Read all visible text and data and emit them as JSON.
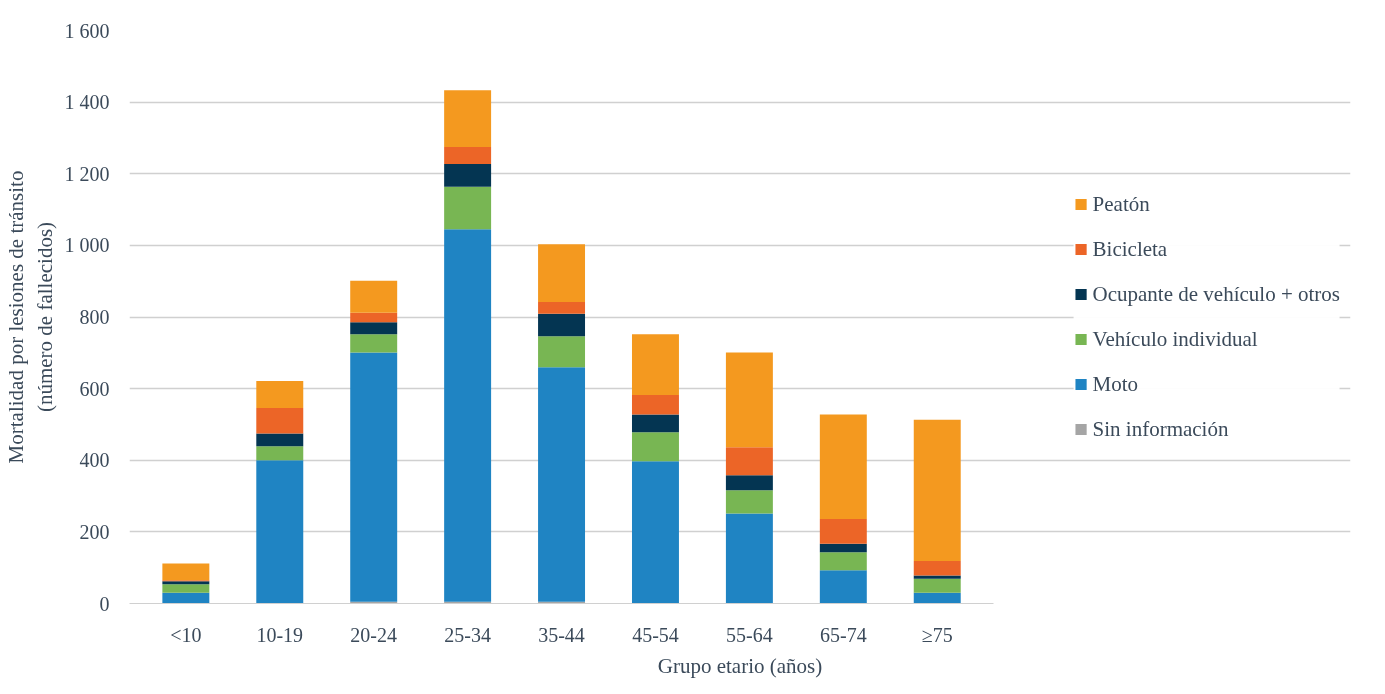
{
  "chart_data": {
    "type": "bar",
    "stacked": true,
    "xlabel": "Grupo etario (años)",
    "ylabel": "Mortalidad por lesiones de tránsito\n(número de fallecidos)",
    "categories": [
      "<10",
      "10-19",
      "20-24",
      "25-34",
      "35-44",
      "45-54",
      "55-64",
      "65-74",
      "≥75"
    ],
    "series": [
      {
        "name": "Sin información",
        "color": "#a5a5a5",
        "values": [
          0,
          0,
          5,
          5,
          5,
          0,
          0,
          0,
          0
        ]
      },
      {
        "name": "Moto",
        "color": "#1f84c3",
        "values": [
          30,
          400,
          696,
          1040,
          655,
          397,
          251,
          93,
          30
        ]
      },
      {
        "name": "Vehículo individual",
        "color": "#78b653",
        "values": [
          24,
          39,
          51,
          119,
          86,
          81,
          65,
          50,
          39
        ]
      },
      {
        "name": "Ocupante de vehículo + otros",
        "color": "#043552",
        "values": [
          8,
          36,
          33,
          63,
          63,
          50,
          42,
          24,
          9
        ]
      },
      {
        "name": "Bicicleta",
        "color": "#ec6527",
        "values": [
          3,
          71,
          27,
          48,
          33,
          54,
          78,
          69,
          41
        ]
      },
      {
        "name": "Peatón",
        "color": "#f4991f",
        "values": [
          47,
          75,
          89,
          158,
          161,
          170,
          265,
          292,
          394
        ]
      }
    ],
    "ylim": [
      0,
      1600
    ],
    "yticks": [
      0,
      200,
      400,
      600,
      800,
      {
        "value": 1000,
        "label": "1 000"
      },
      {
        "value": 1200,
        "label": "1 200"
      },
      {
        "value": 1400,
        "label": "1 400"
      },
      {
        "value": 1600,
        "label": "1 600"
      }
    ],
    "grid": "y",
    "legend": "right"
  }
}
